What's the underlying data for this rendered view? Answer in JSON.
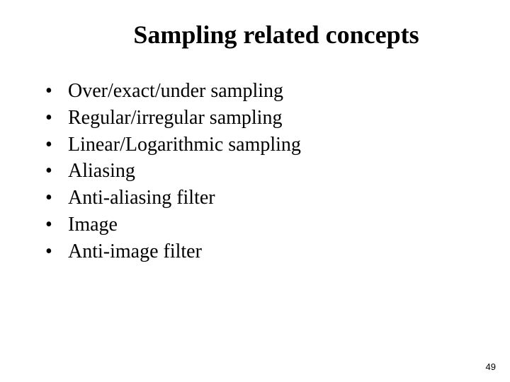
{
  "title": "Sampling related concepts",
  "bullets": [
    "Over/exact/under sampling",
    "Regular/irregular sampling",
    "Linear/Logarithmic sampling",
    "Aliasing",
    "Anti-aliasing filter",
    "Image",
    "Anti-image filter"
  ],
  "page_number": "49",
  "colors": {
    "background": "#ffffff",
    "text": "#000000"
  },
  "typography": {
    "title_fontsize": 36,
    "title_weight": "bold",
    "bullet_fontsize": 28,
    "font_family": "Times New Roman",
    "page_number_fontsize": 13
  }
}
